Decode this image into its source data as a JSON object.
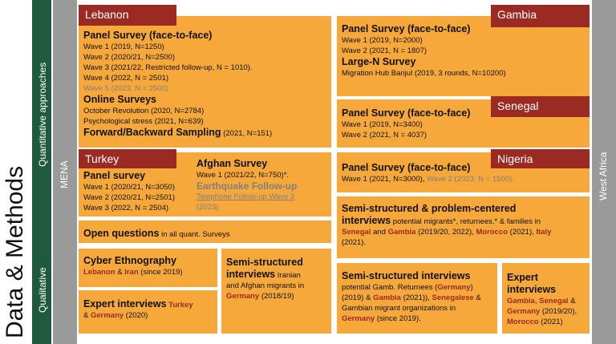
{
  "title": "Data & Methods",
  "left": {
    "quantitative": "Quantitative approaches",
    "qualitative": "Qualitative",
    "mena": "MENA"
  },
  "right": {
    "west_africa": "West Africa"
  },
  "lebanon": {
    "label": "Lebanon",
    "panel_title": "Panel Survey (face-to-face)",
    "waves": [
      "Wave 1 (2019, N=1250)",
      "Wave 2 (2020/21, N=2500)",
      "Wave 3 (2021/22, Restricted follow-up, N = 1010).",
      "Wave 4 (2022, N = 2501)",
      "Wave 5 (2023, N = 2500)"
    ],
    "online_title": "Online Surveys",
    "online_items": [
      "October Revolution (2020, N=2784)",
      "Psychological stress (2021, N=639)"
    ],
    "fb_title": "Forward/Backward Sampling",
    "fb_detail": "(2021, N=151)"
  },
  "turkey": {
    "label": "Turkey",
    "panel_title": "Panel survey",
    "waves": [
      "Wave 1 (2020/21, N=3050)",
      "Wave 2 (2020/21, N=2501)",
      "Wave 3 (2022, N = 2504)"
    ]
  },
  "afghan": {
    "title": "Afghan Survey",
    "wave1": "Wave 1 (2021/22, N=750)*.",
    "eq_title": "Earthquake Follow-up",
    "phone_a": "Telephone Follow-up ",
    "phone_b": "Wave 3",
    "phone_c": "(2023)"
  },
  "open_questions": {
    "bold": "Open questions",
    "rest": " in all quant. Surveys"
  },
  "cyber": {
    "title": "Cyber Ethnography",
    "c1": "Lebanon",
    "amp": " & ",
    "c2": "Iran",
    "rest": " (since 2019)"
  },
  "expert_mena": {
    "title": "Expert interviews",
    "c1": "Turkey",
    "amp": "& ",
    "c2": "Germany",
    "rest": " (2020)"
  },
  "semi_mena": {
    "title_a": "Semi-structured",
    "title_b": "interviews",
    "text_a": " Iranian",
    "text_b": "and Afghan migrants in",
    "c1": "Germany",
    "rest": " (2018/19)"
  },
  "gambia": {
    "label": "Gambia",
    "panel_title": "Panel Survey (face-to-face)",
    "waves": [
      "Wave 1 (2019, N=2000)",
      "Wave 2 (2021, N = 1807)"
    ],
    "largen_title": "Large-N Survey",
    "largen_item": "Migration Hub Banjul (2019, 3 rounds, N=10200)"
  },
  "senegal": {
    "label": "Senegal",
    "panel_title": "Panel Survey (face-to-face)",
    "waves": [
      "Wave 1 (2019, N=3400)",
      "Wave 2 (2021, N = 4037)"
    ]
  },
  "nigeria": {
    "label": "Nigeria",
    "panel_title": "Panel Survey (face-to-face)",
    "wave1": "Wave 1 (2021, N=3000), ",
    "wave2": "Wave 2 (2023, N = 1500)."
  },
  "semi_wa": {
    "title_a": "Semi-structured & problem-centered",
    "title_b": "interviews",
    "text_a": " potential migrants*, returnees.* & families in",
    "c1": "Senegal",
    "and1": " and ",
    "c2": "Gambia",
    "y1": " (2019/20, 2022), ",
    "c3": "Morocco",
    "y2": " (2021), ",
    "c4": "Italy",
    "y3": "(2021)."
  },
  "semi_gamb": {
    "title": "Semi-structured interviews",
    "l1": "potential Gamb. Returnees (",
    "c1": "Germany",
    "l1b": ")",
    "l2a": "(2019) & ",
    "c2": "Gambia",
    "l2b": " (2021)), ",
    "c3": "Senegalese",
    "l2c": " &",
    "l3": "Gambian migrant organizations in",
    "c4": "Germany",
    "l4": " (since 2019)."
  },
  "expert_wa": {
    "title_a": "Expert",
    "title_b": "interviews",
    "c1": "Gambia",
    "s1": ", ",
    "c2": "Senegal",
    "s2": " &",
    "c3": "Germany",
    "y1": " (2019/20),",
    "c4": "Morocco",
    "y2": " (2021)"
  },
  "colors": {
    "orange": "#f7a83a",
    "dark_red": "#9b2a23",
    "green": "#1f5a3f",
    "gray": "#9a9a9a"
  }
}
